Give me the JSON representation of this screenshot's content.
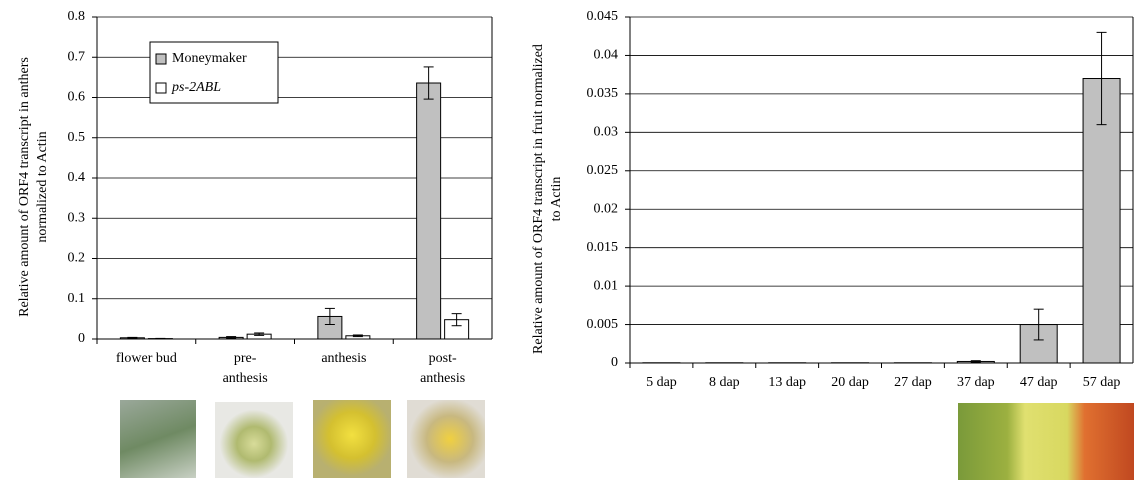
{
  "chart_data": [
    {
      "type": "bar",
      "y_label": "Relative amount of ORF4 transcript in anthers normalized to Actin",
      "categories": [
        "flower bud",
        "pre-anthesis",
        "anthesis",
        "post-anthesis"
      ],
      "series": [
        {
          "name": "Moneymaker",
          "color": "#c0c0c0",
          "values": [
            0.003,
            0.004,
            0.056,
            0.636
          ],
          "errors": [
            0.001,
            0.002,
            0.02,
            0.04
          ]
        },
        {
          "name": "ps-2ABL",
          "color": "#ffffff",
          "values": [
            0.001,
            0.012,
            0.008,
            0.048
          ],
          "errors": [
            0.0005,
            0.003,
            0.002,
            0.015
          ]
        }
      ],
      "ylim": [
        0,
        0.8
      ],
      "yticks": [
        0,
        0.1,
        0.2,
        0.3,
        0.4,
        0.5,
        0.6,
        0.7,
        0.8
      ],
      "grid": true,
      "legend": "upper left"
    },
    {
      "type": "bar",
      "y_label": "Relative amount of ORF4 transcript in fruit normalized to Actin",
      "categories": [
        "5 dap",
        "8 dap",
        "13 dap",
        "20 dap",
        "27 dap",
        "37 dap",
        "47 dap",
        "57 dap"
      ],
      "color": "#c0c0c0",
      "values": [
        3e-05,
        3e-05,
        3e-05,
        3e-05,
        3e-05,
        0.0002,
        0.005,
        0.037
      ],
      "errors": [
        0,
        0,
        0,
        0,
        0,
        0.0001,
        0.002,
        0.006
      ],
      "ylim": [
        0,
        0.045
      ],
      "yticks": [
        0,
        0.005,
        0.01,
        0.015,
        0.02,
        0.025,
        0.03,
        0.035,
        0.04,
        0.045
      ],
      "grid": true
    }
  ]
}
